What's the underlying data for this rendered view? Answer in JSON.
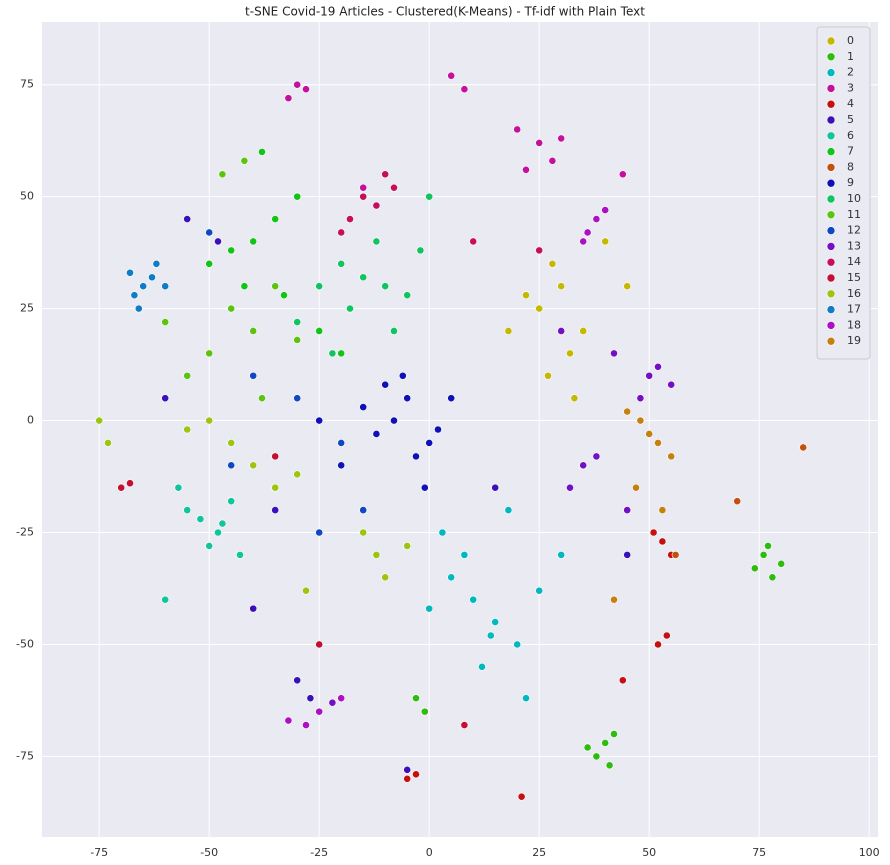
{
  "chart_data": {
    "type": "scatter",
    "title": "t-SNE Covid-19 Articles - Clustered(K-Means) - Tf-idf with Plain Text",
    "xlim": [
      -88,
      102
    ],
    "ylim": [
      -93,
      89
    ],
    "xticks": [
      -75,
      -50,
      -25,
      0,
      25,
      50,
      75,
      100
    ],
    "yticks": [
      -75,
      -50,
      -25,
      0,
      25,
      50,
      75
    ],
    "grid": true,
    "legend": "upper-right",
    "series": [
      {
        "name": "0",
        "color": "#c4b800",
        "x": [
          25,
          30,
          35,
          28,
          40,
          32,
          22,
          38,
          45,
          27,
          33,
          18
        ],
        "y": [
          25,
          30,
          20,
          35,
          40,
          15,
          28,
          45,
          30,
          10,
          5,
          20
        ]
      },
      {
        "name": "1",
        "color": "#2ebd0e",
        "x": [
          76,
          78,
          80,
          74,
          77,
          40,
          38,
          42,
          36,
          41,
          -3,
          -1
        ],
        "y": [
          -30,
          -35,
          -32,
          -33,
          -28,
          -72,
          -75,
          -70,
          -73,
          -77,
          -62,
          -65
        ]
      },
      {
        "name": "2",
        "color": "#00b8bf",
        "x": [
          10,
          5,
          15,
          20,
          8,
          12,
          0,
          25,
          18,
          3,
          30,
          22,
          14
        ],
        "y": [
          -40,
          -35,
          -45,
          -50,
          -30,
          -55,
          -42,
          -38,
          -20,
          -25,
          -30,
          -62,
          -48
        ]
      },
      {
        "name": "3",
        "color": "#c4109c",
        "x": [
          25,
          20,
          28,
          30,
          22,
          -30,
          -32,
          -28,
          5,
          8,
          -15,
          44
        ],
        "y": [
          62,
          65,
          58,
          63,
          56,
          75,
          72,
          74,
          77,
          74,
          52,
          55
        ]
      },
      {
        "name": "4",
        "color": "#c41010",
        "x": [
          53,
          55,
          51,
          54,
          52,
          -5,
          -3,
          21,
          8,
          44
        ],
        "y": [
          -27,
          -30,
          -25,
          -48,
          -50,
          -80,
          -79,
          -84,
          -68,
          -58
        ]
      },
      {
        "name": "5",
        "color": "#3c10b8",
        "x": [
          -55,
          -48,
          -30,
          -27,
          -60,
          -40,
          35,
          45,
          -5,
          15,
          -35
        ],
        "y": [
          45,
          40,
          -58,
          -62,
          5,
          -42,
          -10,
          -30,
          -78,
          -15,
          -20
        ]
      },
      {
        "name": "6",
        "color": "#10c49c",
        "x": [
          -52,
          -48,
          -55,
          -45,
          -50,
          -57,
          -47,
          -43,
          -60
        ],
        "y": [
          -22,
          -25,
          -20,
          -18,
          -28,
          -15,
          -23,
          -30,
          -40
        ]
      },
      {
        "name": "7",
        "color": "#10c418",
        "x": [
          -40,
          -35,
          -45,
          -30,
          -25,
          -50,
          -38,
          -42,
          -33,
          -20
        ],
        "y": [
          40,
          45,
          38,
          50,
          20,
          35,
          60,
          30,
          28,
          15
        ]
      },
      {
        "name": "8",
        "color": "#c4500f",
        "x": [
          85,
          70,
          56
        ],
        "y": [
          -6,
          -18,
          -30
        ]
      },
      {
        "name": "9",
        "color": "#1010b8",
        "x": [
          -8,
          -5,
          -12,
          -3,
          -10,
          0,
          -15,
          -6,
          2,
          -20,
          -1,
          5,
          -25
        ],
        "y": [
          0,
          5,
          -3,
          -8,
          8,
          -5,
          3,
          10,
          -2,
          -10,
          -15,
          5,
          0
        ]
      },
      {
        "name": "10",
        "color": "#10c460",
        "x": [
          -15,
          -10,
          -20,
          -5,
          -18,
          -12,
          -25,
          -8,
          -22,
          -2,
          -30,
          0
        ],
        "y": [
          32,
          30,
          35,
          28,
          25,
          40,
          30,
          20,
          15,
          38,
          22,
          50
        ]
      },
      {
        "name": "11",
        "color": "#5cc410",
        "x": [
          -45,
          -40,
          -50,
          -35,
          -55,
          -30,
          -42,
          -47,
          -38,
          -60
        ],
        "y": [
          25,
          20,
          15,
          30,
          10,
          18,
          58,
          55,
          5,
          22
        ]
      },
      {
        "name": "12",
        "color": "#1048c4",
        "x": [
          -20,
          -30,
          -35,
          -15,
          -40,
          -45,
          -25,
          -50
        ],
        "y": [
          -5,
          5,
          -15,
          -20,
          10,
          -10,
          -25,
          42
        ]
      },
      {
        "name": "13",
        "color": "#7410c4",
        "x": [
          50,
          48,
          52,
          55,
          35,
          38,
          32,
          -25,
          -22,
          42,
          30,
          45
        ],
        "y": [
          10,
          5,
          12,
          8,
          -10,
          -8,
          -15,
          -65,
          -63,
          15,
          20,
          -20
        ]
      },
      {
        "name": "14",
        "color": "#c4105c",
        "x": [
          -15,
          -12,
          -18,
          -10,
          -20,
          -8,
          10,
          25
        ],
        "y": [
          50,
          48,
          45,
          55,
          42,
          52,
          40,
          38
        ]
      },
      {
        "name": "15",
        "color": "#c41030",
        "x": [
          -70,
          -68,
          -35,
          -25,
          8
        ],
        "y": [
          -15,
          -14,
          -8,
          -50,
          -68
        ]
      },
      {
        "name": "16",
        "color": "#9cc410",
        "x": [
          -45,
          -40,
          -50,
          -35,
          -12,
          -10,
          -15,
          -75,
          -73,
          -30,
          -28,
          -5,
          -55
        ],
        "y": [
          -5,
          -10,
          0,
          -15,
          -30,
          -35,
          -25,
          0,
          -5,
          -12,
          -38,
          -28,
          -2
        ]
      },
      {
        "name": "17",
        "color": "#107cc4",
        "x": [
          -65,
          -63,
          -67,
          -62,
          -66,
          -60,
          -68
        ],
        "y": [
          30,
          32,
          28,
          35,
          25,
          30,
          33
        ]
      },
      {
        "name": "18",
        "color": "#ac10c4",
        "x": [
          38,
          36,
          40,
          35,
          -25,
          -28,
          -20,
          -32
        ],
        "y": [
          45,
          42,
          47,
          40,
          -65,
          -68,
          -62,
          -67
        ]
      },
      {
        "name": "19",
        "color": "#c48010",
        "x": [
          50,
          52,
          48,
          55,
          45,
          53,
          47,
          42
        ],
        "y": [
          -3,
          -5,
          0,
          -8,
          2,
          -20,
          -15,
          -40
        ]
      }
    ]
  }
}
